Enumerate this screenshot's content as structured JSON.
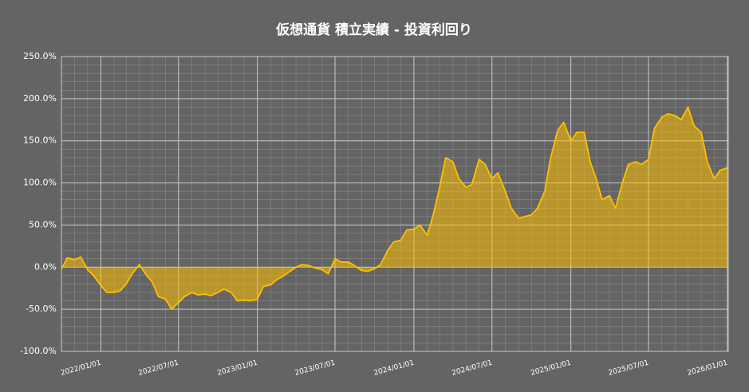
{
  "chart_data": {
    "type": "area",
    "title": "仮想通貨 積立実績 - 投資利回り",
    "x": [
      "2021/10/01",
      "2021/10/15",
      "2021/11/01",
      "2021/11/15",
      "2021/12/01",
      "2021/12/15",
      "2022/01/01",
      "2022/01/15",
      "2022/02/01",
      "2022/02/15",
      "2022/03/01",
      "2022/03/15",
      "2022/04/01",
      "2022/04/15",
      "2022/05/01",
      "2022/05/15",
      "2022/06/01",
      "2022/06/15",
      "2022/07/01",
      "2022/07/15",
      "2022/08/01",
      "2022/08/15",
      "2022/09/01",
      "2022/09/15",
      "2022/10/01",
      "2022/10/15",
      "2022/11/01",
      "2022/11/15",
      "2022/12/01",
      "2022/12/15",
      "2023/01/01",
      "2023/01/15",
      "2023/02/01",
      "2023/02/15",
      "2023/03/01",
      "2023/03/15",
      "2023/04/01",
      "2023/04/15",
      "2023/05/01",
      "2023/05/15",
      "2023/06/01",
      "2023/06/15",
      "2023/07/01",
      "2023/07/15",
      "2023/08/01",
      "2023/08/15",
      "2023/09/01",
      "2023/09/15",
      "2023/10/01",
      "2023/10/15",
      "2023/11/01",
      "2023/11/15",
      "2023/12/01",
      "2023/12/15",
      "2024/01/01",
      "2024/01/15",
      "2024/02/01",
      "2024/02/15",
      "2024/03/01",
      "2024/03/15",
      "2024/04/01",
      "2024/04/15",
      "2024/05/01",
      "2024/05/15",
      "2024/06/01",
      "2024/06/15",
      "2024/07/01",
      "2024/07/15",
      "2024/08/01",
      "2024/08/15",
      "2024/09/01",
      "2024/09/15",
      "2024/10/01",
      "2024/10/15",
      "2024/11/01",
      "2024/11/15",
      "2024/12/01",
      "2024/12/15",
      "2025/01/01",
      "2025/01/15",
      "2025/02/01",
      "2025/02/15",
      "2025/03/01",
      "2025/03/15",
      "2025/04/01",
      "2025/04/15",
      "2025/05/01",
      "2025/05/15",
      "2025/06/01",
      "2025/06/15",
      "2025/07/01",
      "2025/07/15",
      "2025/08/01",
      "2025/08/15",
      "2025/09/01",
      "2025/09/15",
      "2025/10/01",
      "2025/10/15",
      "2025/11/01",
      "2025/11/15",
      "2025/12/01",
      "2025/12/15",
      "2026/01/01"
    ],
    "series": [
      {
        "color": "#ffc000",
        "values": [
          -2,
          11,
          9,
          12,
          -3,
          -10,
          -22,
          -30,
          -30,
          -28,
          -20,
          -8,
          3,
          -8,
          -18,
          -35,
          -38,
          -50,
          -42,
          -35,
          -30,
          -33,
          -32,
          -34,
          -30,
          -26,
          -30,
          -40,
          -39,
          -40,
          -38,
          -23,
          -21,
          -15,
          -11,
          -6,
          0,
          3,
          2,
          -1,
          -3,
          -8,
          10,
          6,
          6,
          2,
          -4,
          -5,
          -2,
          3,
          20,
          30,
          32,
          44,
          45,
          50,
          38,
          62,
          95,
          130,
          125,
          105,
          95,
          98,
          128,
          122,
          105,
          112,
          90,
          70,
          58,
          60,
          62,
          70,
          90,
          130,
          162,
          172,
          150,
          160,
          160,
          125,
          105,
          80,
          85,
          70,
          100,
          122,
          125,
          122,
          128,
          165,
          178,
          182,
          180,
          175,
          190,
          168,
          160,
          125,
          105,
          115,
          118
        ]
      }
    ],
    "xlim": [
      "2021/10/01",
      "2026/01/03"
    ],
    "xticks": [
      "2022/01/01",
      "2022/07/01",
      "2023/01/01",
      "2023/07/01",
      "2024/01/01",
      "2024/07/01",
      "2025/01/01",
      "2025/07/01",
      "2026/01/01"
    ],
    "ylim": [
      -100,
      250
    ],
    "yticks": [
      {
        "value": -100,
        "label": "-100.0%"
      },
      {
        "value": -50,
        "label": "-50.0%"
      },
      {
        "value": 0,
        "label": "0.0%"
      },
      {
        "value": 50,
        "label": "50.0%"
      },
      {
        "value": 100,
        "label": "100.0%"
      },
      {
        "value": 150,
        "label": "150.0%"
      },
      {
        "value": 200,
        "label": "200.0%"
      },
      {
        "value": 250,
        "label": "250.0%"
      }
    ],
    "grid": true,
    "minor_grid": true
  }
}
